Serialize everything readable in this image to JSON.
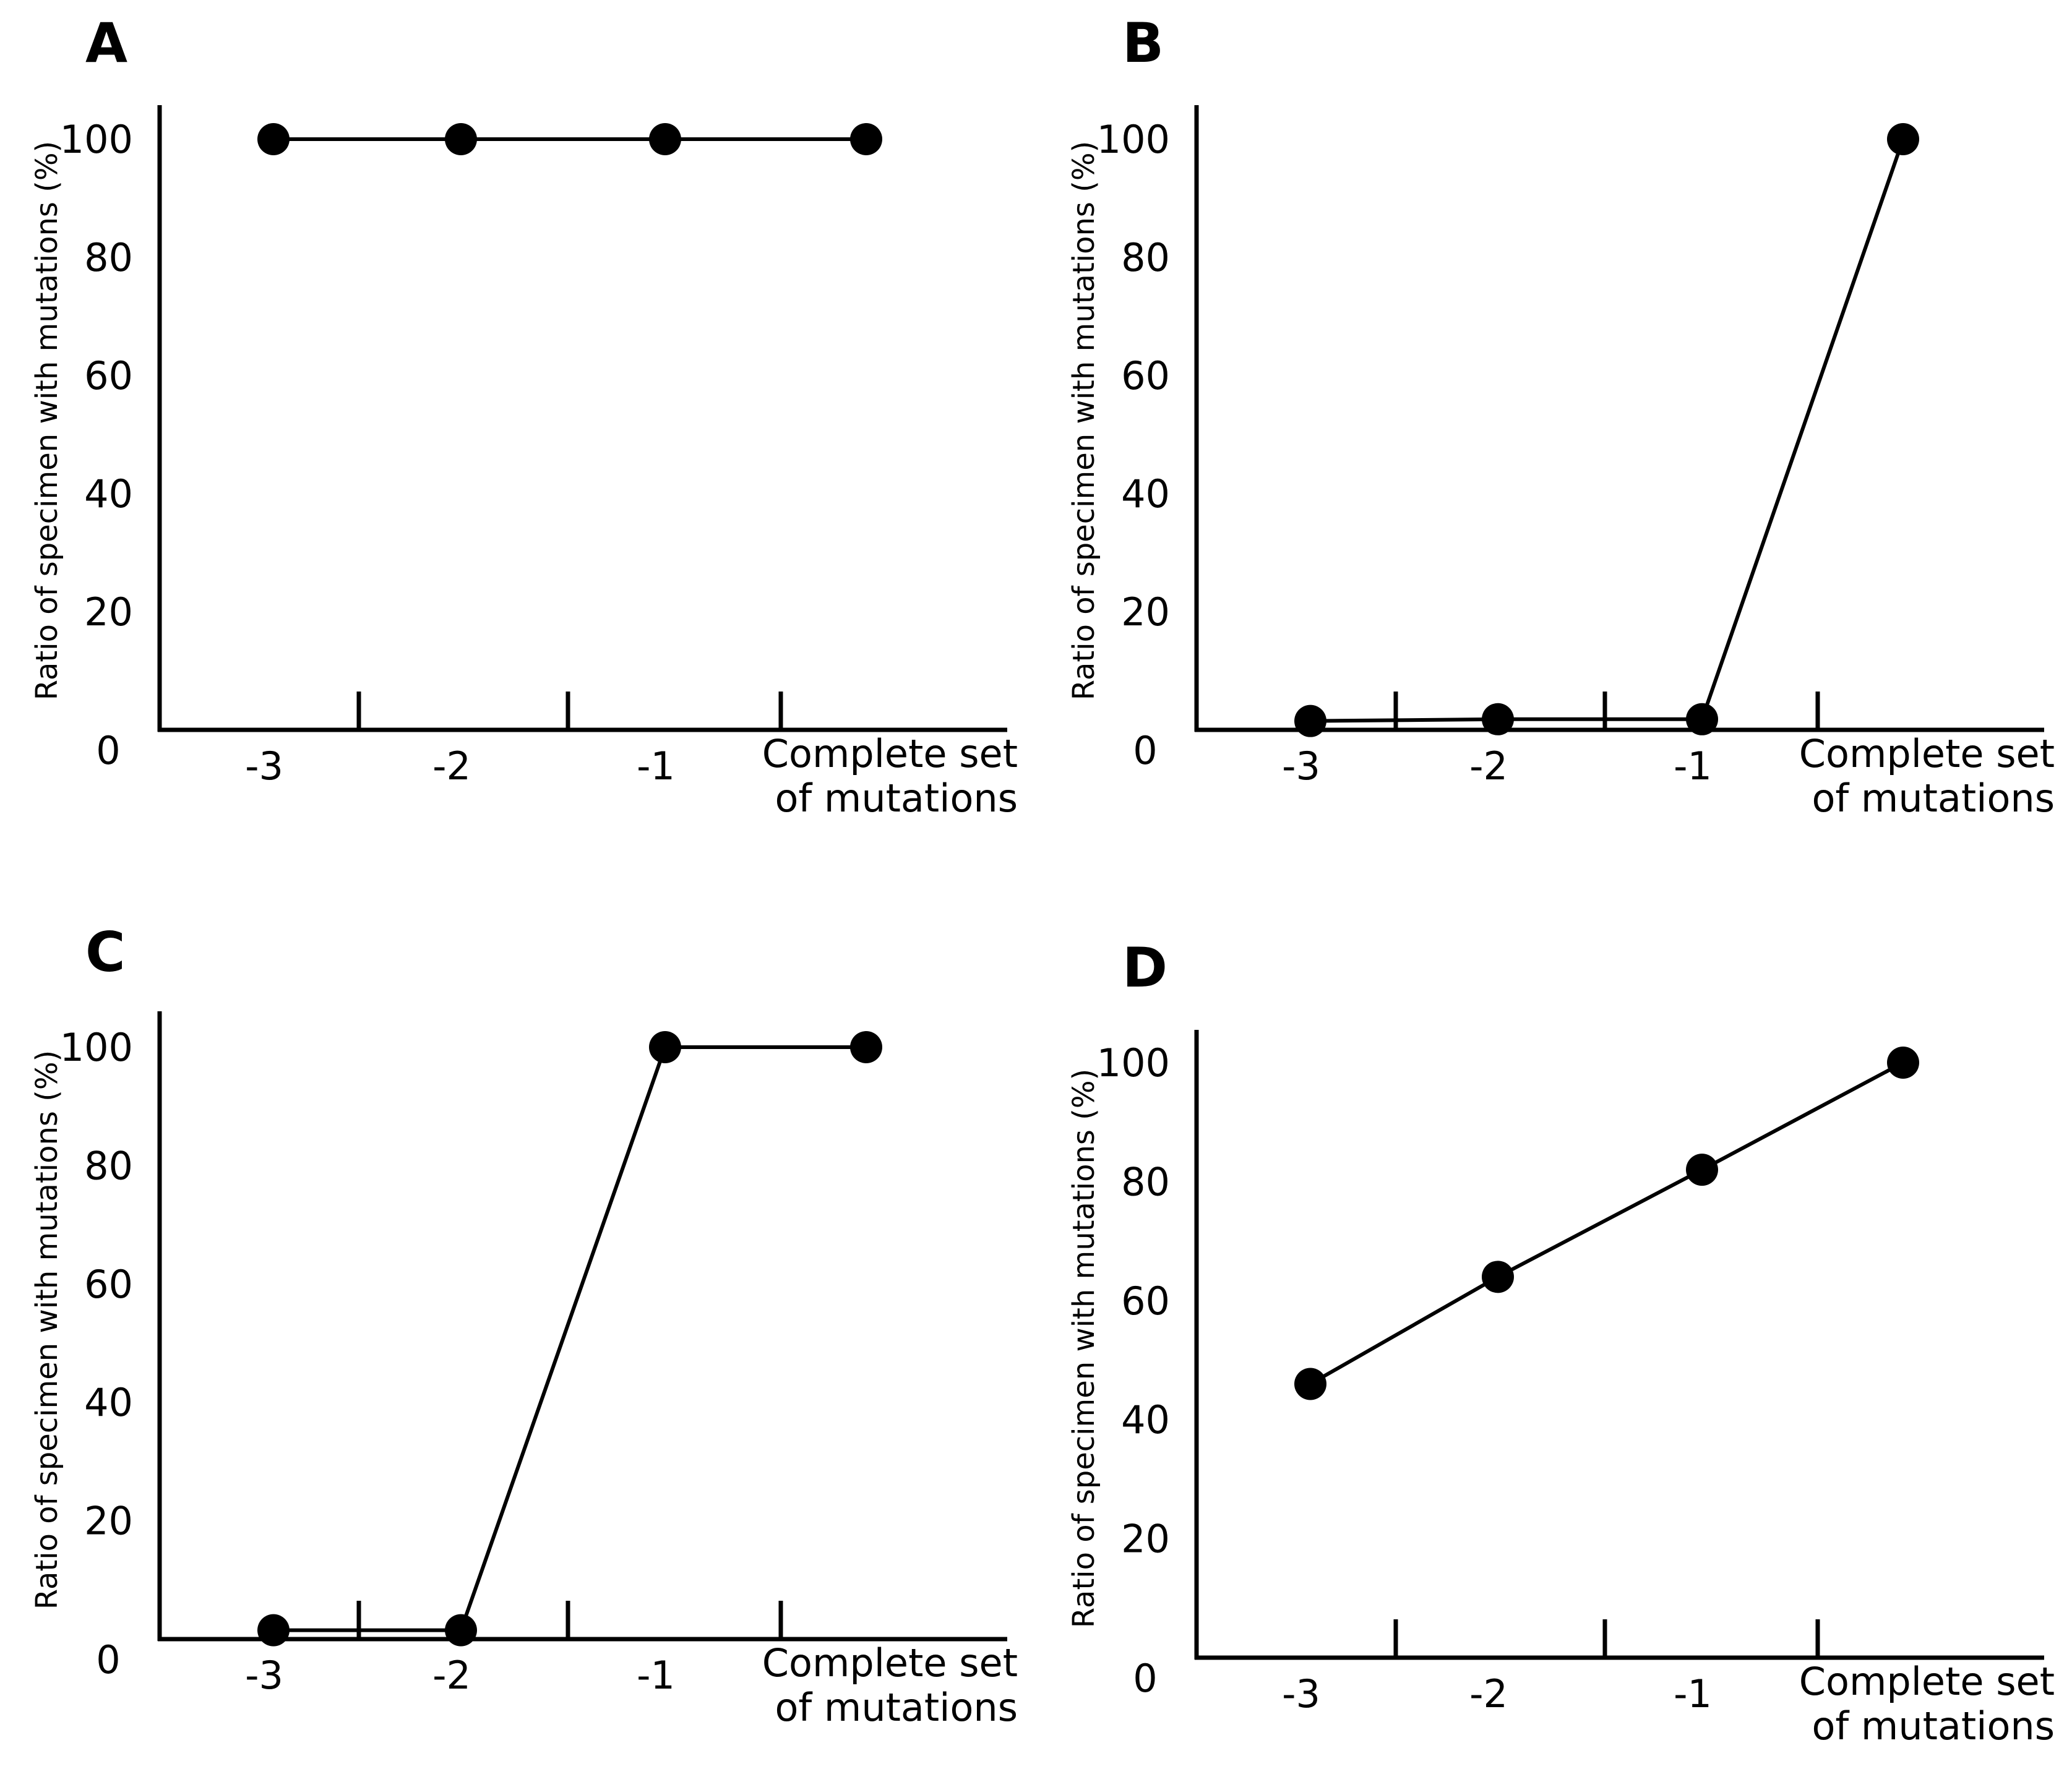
{
  "chart_data": [
    {
      "panel": "A",
      "type": "line",
      "categories": [
        "-3",
        "-2",
        "-1",
        "Complete set|of mutations"
      ],
      "values": [
        100,
        100,
        100,
        100
      ],
      "ylabel": "Ratio of specimen with mutations (%)",
      "xlabel": "",
      "yticks": [
        "0",
        "20",
        "40",
        "60",
        "80",
        "100"
      ],
      "ylim": [
        0,
        105
      ]
    },
    {
      "panel": "B",
      "type": "line",
      "categories": [
        "-3",
        "-2",
        "-1",
        "Complete set|of mutations"
      ],
      "values": [
        1.5,
        1.8,
        1.8,
        100
      ],
      "ylabel": "Ratio of specimen with mutations (%)",
      "xlabel": "",
      "yticks": [
        "0",
        "20",
        "40",
        "60",
        "80",
        "100"
      ],
      "ylim": [
        0,
        105
      ]
    },
    {
      "panel": "C",
      "type": "line",
      "categories": [
        "-3",
        "-2",
        "-1",
        "Complete set|of mutations"
      ],
      "values": [
        1.5,
        1.5,
        100,
        100
      ],
      "ylabel": "Ratio of specimen with mutations (%)",
      "xlabel": "",
      "yticks": [
        "0",
        "20",
        "40",
        "60",
        "80",
        "100"
      ],
      "ylim": [
        0,
        105
      ]
    },
    {
      "panel": "D",
      "type": "line",
      "categories": [
        "-3",
        "-2",
        "-1",
        "Complete set|of mutations"
      ],
      "values": [
        46,
        64,
        82,
        100
      ],
      "ylabel": "Ratio of specimen with mutations (%)",
      "xlabel": "",
      "yticks": [
        "0",
        "20",
        "40",
        "60",
        "80",
        "100"
      ],
      "ylim": [
        0,
        105
      ]
    }
  ]
}
